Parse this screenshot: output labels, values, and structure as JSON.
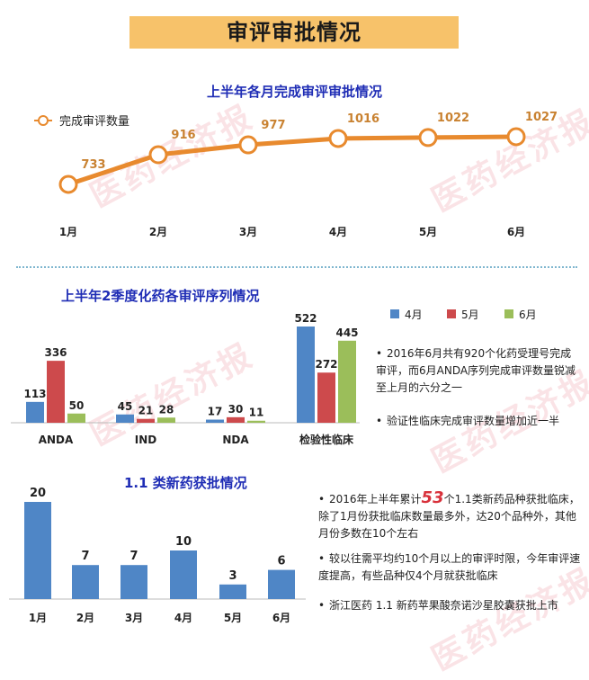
{
  "page_title": "审评审批情况",
  "watermark_text": "医药经济报",
  "colors": {
    "banner": "#f7c26a",
    "line": "#e88a2e",
    "blue": "#4f86c6",
    "red": "#cd4a4c",
    "green": "#9bbe5a",
    "title": "#1f2db5"
  },
  "chart_data": [
    {
      "type": "line",
      "title": "上半年各月完成审评审批情况",
      "categories": [
        "1月",
        "2月",
        "3月",
        "4月",
        "5月",
        "6月"
      ],
      "series": [
        {
          "name": "完成审评数量",
          "values": [
            733,
            916,
            977,
            1016,
            1022,
            1027
          ]
        }
      ],
      "ylim": [
        600,
        1100
      ]
    },
    {
      "type": "bar",
      "title": "上半年2季度化药各审评序列情况",
      "categories": [
        "ANDA",
        "IND",
        "NDA",
        "检验性临床"
      ],
      "series": [
        {
          "name": "4月",
          "values": [
            113,
            45,
            17,
            522
          ]
        },
        {
          "name": "5月",
          "values": [
            336,
            21,
            30,
            272
          ]
        },
        {
          "name": "6月",
          "values": [
            50,
            28,
            11,
            445
          ]
        }
      ],
      "legend": "top-right",
      "ylim": [
        0,
        522
      ]
    },
    {
      "type": "bar",
      "title": "1.1 类新药获批情况",
      "categories": [
        "1月",
        "2月",
        "3月",
        "4月",
        "5月",
        "6月"
      ],
      "values": [
        20,
        7,
        7,
        10,
        3,
        6
      ],
      "ylim": [
        0,
        20
      ]
    }
  ],
  "notes_top": [
    "2016年6月共有920个化药受理号完成审评，而6月ANDA序列完成审评数量锐减至上月的六分之一",
    "验证性临床完成审评数量增加近一半"
  ],
  "notes_bottom": {
    "n1_prefix": "2016年上半年累计",
    "n1_number": "53",
    "n1_suffix": "个1.1类新药品种获批临床，除了1月份获批临床数量最多外，达20个品种外，其他月份多数在10个左右",
    "n2": "较以往需平均约10个月以上的审评时限，今年审评速度提高，有些品种仅4个月就获批临床",
    "n3": "浙江医药 1.1 新药苹果酸奈诺沙星胶囊获批上市"
  }
}
